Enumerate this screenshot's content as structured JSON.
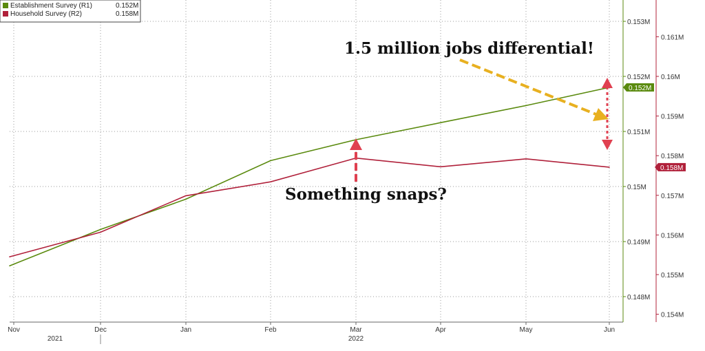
{
  "chart_data": {
    "type": "line",
    "x": [
      "Nov",
      "Dec",
      "Jan",
      "Feb",
      "Mar",
      "Apr",
      "May",
      "Jun"
    ],
    "year_labels": [
      "2021",
      "2022"
    ],
    "series": [
      {
        "name": "Establishment Survey (R1)",
        "axis": "right1",
        "color": "#5a8a0e",
        "last_label": "0.152M",
        "values": [
          0.14856,
          0.14922,
          0.14977,
          0.15047,
          0.15085,
          0.15116,
          0.15147,
          0.1518
        ]
      },
      {
        "name": "Household Survey (R2)",
        "axis": "right2",
        "color": "#b0203a",
        "last_label": "0.158M",
        "values": [
          0.15545,
          0.15607,
          0.15699,
          0.15734,
          0.15794,
          0.15772,
          0.15792,
          0.15771
        ]
      }
    ],
    "legend": [
      {
        "label": "Establishment Survey (R1)",
        "value": "0.152M"
      },
      {
        "label": "Household Survey (R2)",
        "value": "0.158M"
      }
    ],
    "y_right1": {
      "ticks": [
        "0.153M",
        "0.152M",
        "0.151M",
        "0.15M",
        "0.149M",
        "0.148M"
      ],
      "tick_values": [
        0.153,
        0.152,
        0.151,
        0.15,
        0.149,
        0.148
      ]
    },
    "y_right2": {
      "ticks": [
        "0.161M",
        "0.16M",
        "0.159M",
        "0.158M",
        "0.157M",
        "0.156M",
        "0.155M",
        "0.154M"
      ],
      "tick_values": [
        0.161,
        0.16,
        0.159,
        0.158,
        0.157,
        0.156,
        0.155,
        0.154
      ]
    },
    "annotations": [
      "1.5 million jobs differential!",
      "Something snaps?"
    ],
    "colors": {
      "establishment": "#5a8a0e",
      "household": "#b0203a",
      "arrow_gold": "#e8b020",
      "arrow_red": "#e04050",
      "grid": "#9a9a9a"
    }
  }
}
